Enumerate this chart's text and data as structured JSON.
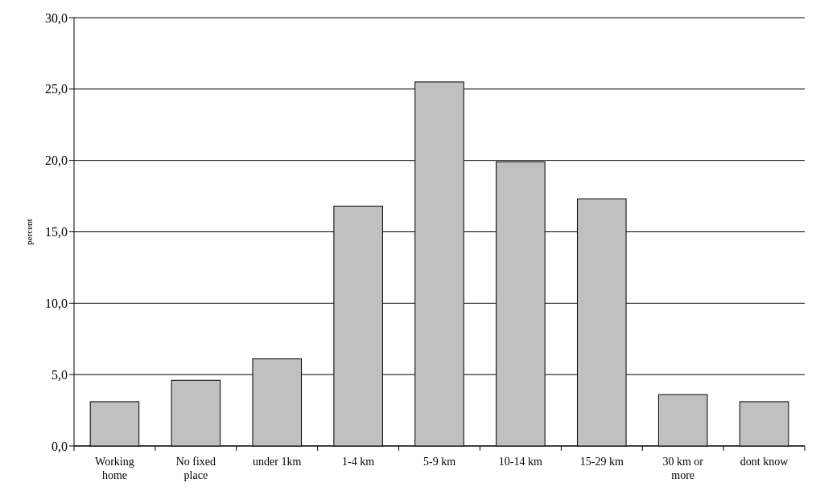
{
  "chart_data": {
    "type": "bar",
    "ylabel": "percent",
    "categories": [
      "Working home",
      "No fixed place",
      "under 1km",
      "1-4 km",
      "5-9 km",
      "10-14 km",
      "15-29 km",
      "30 km or more",
      "dont know"
    ],
    "values": [
      3.1,
      4.6,
      6.1,
      16.8,
      25.5,
      19.9,
      17.3,
      3.6,
      3.1
    ],
    "color": "#c0c0c0",
    "ylim": [
      0,
      30
    ],
    "yticks": [
      {
        "value": 0,
        "label": "0,0"
      },
      {
        "value": 5,
        "label": "5,0"
      },
      {
        "value": 10,
        "label": "10,0"
      },
      {
        "value": 15,
        "label": "15,0"
      },
      {
        "value": 20,
        "label": "20,0"
      },
      {
        "value": 25,
        "label": "25,0"
      },
      {
        "value": 30,
        "label": "30,0"
      }
    ],
    "grid": "y"
  }
}
